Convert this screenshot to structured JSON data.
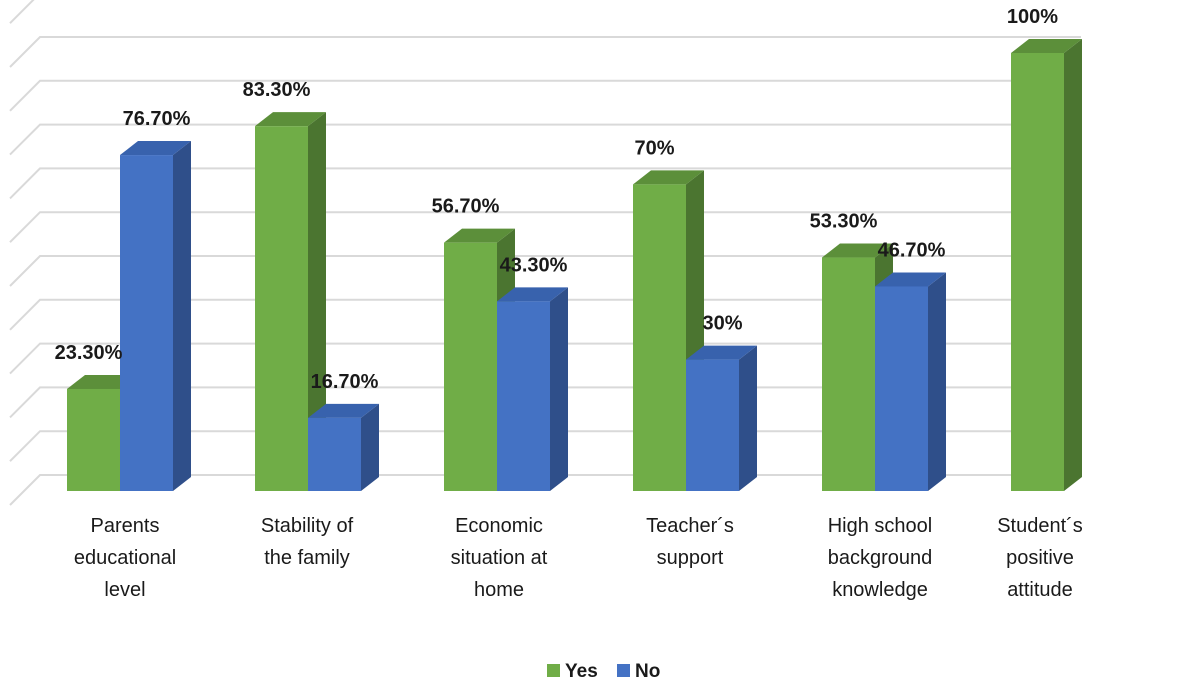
{
  "chart_data": {
    "type": "bar",
    "title": "",
    "xlabel": "",
    "ylabel": "",
    "ylim": [
      0,
      110
    ],
    "grid": true,
    "legend_position": "bottom",
    "categories": [
      [
        "Parents",
        "educational",
        "level"
      ],
      [
        "Stability of",
        "the family"
      ],
      [
        "Economic",
        "situation at",
        "home"
      ],
      [
        "Teacher´s",
        "support"
      ],
      [
        "High school",
        "background",
        "knowledge"
      ],
      [
        "Student´s",
        "positive",
        "attitude"
      ]
    ],
    "series": [
      {
        "name": "Yes",
        "color": "#70ad47",
        "values": [
          23.3,
          83.3,
          56.7,
          70,
          53.3,
          100
        ],
        "labels": [
          "23.30%",
          "83.30%",
          "56.70%",
          "70%",
          "53.30%",
          "100%"
        ]
      },
      {
        "name": "No",
        "color": "#4472c4",
        "values": [
          76.7,
          16.7,
          43.3,
          30,
          46.7,
          null
        ],
        "labels": [
          "76.70%",
          "16.70%",
          "43.30%",
          "30%",
          "46.70%",
          null
        ]
      }
    ]
  }
}
